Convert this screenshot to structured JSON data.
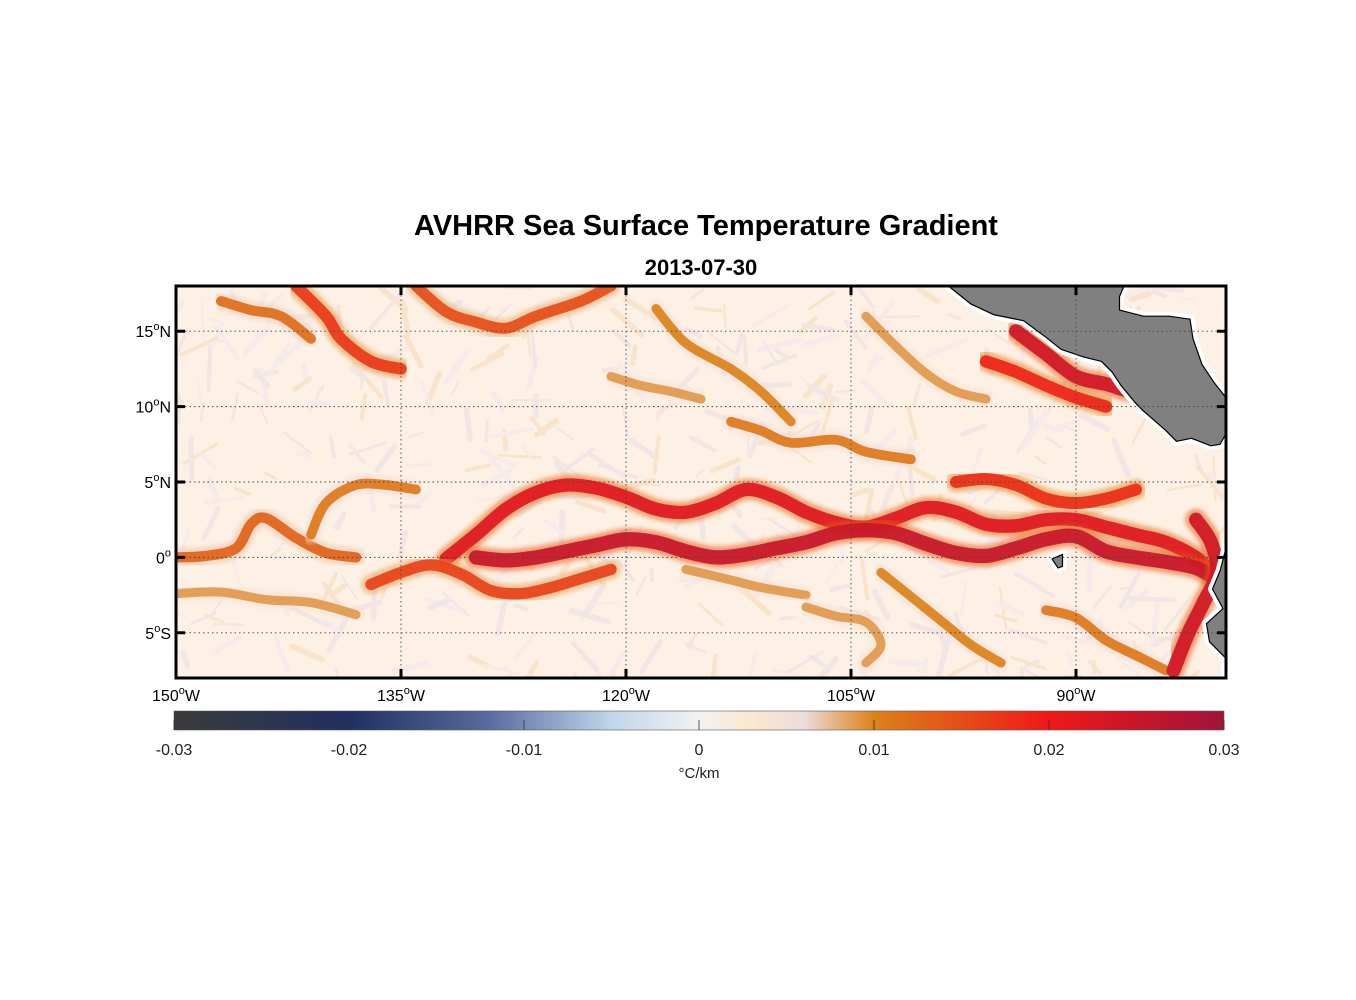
{
  "title": "AVHRR Sea Surface Temperature Gradient",
  "subtitle": "2013-07-30",
  "map": {
    "lon_range": [
      -150,
      -80
    ],
    "lat_range": [
      -8,
      18
    ],
    "lon_ticks": [
      {
        "value": -150,
        "deg": "150",
        "hemi": "W"
      },
      {
        "value": -135,
        "deg": "135",
        "hemi": "W"
      },
      {
        "value": -120,
        "deg": "120",
        "hemi": "W"
      },
      {
        "value": -105,
        "deg": "105",
        "hemi": "W"
      },
      {
        "value": -90,
        "deg": "90",
        "hemi": "W"
      }
    ],
    "lat_ticks": [
      {
        "value": 15,
        "deg": "15",
        "hemi": "N"
      },
      {
        "value": 10,
        "deg": "10",
        "hemi": "N"
      },
      {
        "value": 5,
        "deg": "5",
        "hemi": "N"
      },
      {
        "value": 0,
        "deg": "0",
        "hemi": ""
      },
      {
        "value": -5,
        "deg": "5",
        "hemi": "S"
      }
    ],
    "grid": true,
    "land_color": "#808080",
    "fronts": [
      {
        "name": "equatorial-front-main",
        "level": 0.022,
        "points": [
          [
            -132,
            -0.1
          ],
          [
            -130,
            1.5
          ],
          [
            -128,
            3.2
          ],
          [
            -126,
            4.3
          ],
          [
            -124,
            4.8
          ],
          [
            -122,
            4.6
          ],
          [
            -120,
            4.0
          ],
          [
            -118,
            3.2
          ],
          [
            -116,
            3.0
          ],
          [
            -114,
            3.6
          ],
          [
            -112,
            4.5
          ],
          [
            -110,
            4.0
          ],
          [
            -108,
            3.0
          ],
          [
            -106,
            2.3
          ],
          [
            -104,
            2.0
          ],
          [
            -102,
            2.6
          ],
          [
            -100,
            3.3
          ],
          [
            -98,
            3.0
          ],
          [
            -96,
            2.2
          ],
          [
            -94,
            2.1
          ],
          [
            -92,
            2.5
          ],
          [
            -90,
            2.5
          ],
          [
            -88,
            2.0
          ],
          [
            -86,
            1.5
          ],
          [
            -84,
            1.0
          ],
          [
            -82,
            0.0
          ],
          [
            -81,
            -1.0
          ]
        ]
      },
      {
        "name": "equatorial-front-south",
        "level": 0.025,
        "points": [
          [
            -130,
            0.0
          ],
          [
            -128,
            -0.2
          ],
          [
            -126,
            0.0
          ],
          [
            -124,
            0.4
          ],
          [
            -122,
            0.8
          ],
          [
            -120,
            1.2
          ],
          [
            -118,
            1.0
          ],
          [
            -116,
            0.4
          ],
          [
            -114,
            0.0
          ],
          [
            -112,
            0.2
          ],
          [
            -110,
            0.6
          ],
          [
            -108,
            1.0
          ],
          [
            -106,
            1.6
          ],
          [
            -104,
            1.8
          ],
          [
            -102,
            1.6
          ],
          [
            -100,
            0.9
          ],
          [
            -98,
            0.3
          ],
          [
            -96,
            0.1
          ],
          [
            -94,
            0.6
          ],
          [
            -92,
            1.2
          ],
          [
            -90,
            1.4
          ],
          [
            -88,
            0.4
          ],
          [
            -86,
            0.0
          ],
          [
            -84,
            -0.3
          ],
          [
            -82,
            -0.7
          ],
          [
            -80.6,
            -1.5
          ]
        ]
      },
      {
        "name": "south-arc-front",
        "level": 0.016,
        "points": [
          [
            -137,
            -1.8
          ],
          [
            -135,
            -1.0
          ],
          [
            -133,
            -0.5
          ],
          [
            -131,
            -1.1
          ],
          [
            -129,
            -2.2
          ],
          [
            -127,
            -2.4
          ],
          [
            -125,
            -2.0
          ],
          [
            -123,
            -1.4
          ],
          [
            -121,
            -0.8
          ]
        ]
      },
      {
        "name": "west-equatorial-front",
        "level": 0.013,
        "points": [
          [
            -150,
            0.0
          ],
          [
            -148,
            0.1
          ],
          [
            -146,
            0.6
          ],
          [
            -145,
            2.2
          ],
          [
            -144,
            2.6
          ],
          [
            -142,
            1.3
          ],
          [
            -140,
            0.3
          ],
          [
            -138,
            0.0
          ]
        ]
      },
      {
        "name": "north-5n-front",
        "level": 0.011,
        "points": [
          [
            -141,
            1.5
          ],
          [
            -140,
            3.6
          ],
          [
            -138,
            4.8
          ],
          [
            -136,
            4.8
          ],
          [
            -134,
            4.5
          ]
        ]
      },
      {
        "name": "southwest-front",
        "level": 0.009,
        "points": [
          [
            -150,
            -2.4
          ],
          [
            -147,
            -2.3
          ],
          [
            -144,
            -2.8
          ],
          [
            -141,
            -3.0
          ],
          [
            -138,
            -3.8
          ]
        ]
      },
      {
        "name": "central-south-front",
        "level": 0.009,
        "points": [
          [
            -116,
            -0.8
          ],
          [
            -113,
            -1.5
          ],
          [
            -111,
            -2.0
          ],
          [
            -108,
            -2.5
          ]
        ]
      },
      {
        "name": "southeast-front-a",
        "level": 0.01,
        "points": [
          [
            -103,
            -1.0
          ],
          [
            -101,
            -2.6
          ],
          [
            -99,
            -4.2
          ],
          [
            -97,
            -5.8
          ],
          [
            -95,
            -7.0
          ]
        ]
      },
      {
        "name": "southeast-front-b",
        "level": 0.011,
        "points": [
          [
            -92,
            -3.5
          ],
          [
            -90,
            -4.0
          ],
          [
            -88,
            -5.5
          ],
          [
            -86,
            -6.5
          ],
          [
            -84,
            -7.5
          ]
        ]
      },
      {
        "name": "south-eddy-front",
        "level": 0.009,
        "points": [
          [
            -108,
            -3.3
          ],
          [
            -106,
            -3.9
          ],
          [
            -104,
            -4.3
          ],
          [
            -103,
            -5.8
          ],
          [
            -104,
            -7.0
          ]
        ]
      },
      {
        "name": "north-front-west",
        "level": 0.017,
        "points": [
          [
            -142,
            18.0
          ],
          [
            -140,
            16.0
          ],
          [
            -139,
            14.5
          ],
          [
            -137,
            13.0
          ],
          [
            -135,
            12.5
          ]
        ]
      },
      {
        "name": "north-front-center",
        "level": 0.015,
        "points": [
          [
            -134,
            18.0
          ],
          [
            -132,
            16.3
          ],
          [
            -130,
            15.6
          ],
          [
            -128,
            15.2
          ],
          [
            -126,
            16.0
          ],
          [
            -123,
            17.0
          ],
          [
            -121,
            18.0
          ]
        ]
      },
      {
        "name": "north-front-west-2",
        "level": 0.012,
        "points": [
          [
            -147,
            17.0
          ],
          [
            -145,
            16.4
          ],
          [
            -143,
            16.0
          ],
          [
            -141,
            14.5
          ]
        ]
      },
      {
        "name": "north-front-mid",
        "level": 0.01,
        "points": [
          [
            -118,
            16.5
          ],
          [
            -116,
            14.2
          ],
          [
            -113,
            12.5
          ],
          [
            -111,
            11.0
          ],
          [
            -109,
            9.0
          ]
        ]
      },
      {
        "name": "north-front-mid-2",
        "level": 0.009,
        "points": [
          [
            -121,
            12.0
          ],
          [
            -119,
            11.4
          ],
          [
            -117,
            11.0
          ],
          [
            -115,
            10.5
          ]
        ]
      },
      {
        "name": "north-front-east",
        "level": 0.009,
        "points": [
          [
            -104,
            16.0
          ],
          [
            -102,
            14.0
          ],
          [
            -100,
            12.2
          ],
          [
            -98,
            11.0
          ],
          [
            -96,
            10.5
          ]
        ]
      },
      {
        "name": "coastal-front",
        "level": 0.024,
        "points": [
          [
            -94,
            15.0
          ],
          [
            -92,
            13.5
          ],
          [
            -90,
            12.0
          ],
          [
            -88,
            11.5
          ],
          [
            -86,
            11.0
          ],
          [
            -84,
            11.5
          ]
        ]
      },
      {
        "name": "coastal-front-inner",
        "level": 0.019,
        "points": [
          [
            -96,
            13.0
          ],
          [
            -94,
            12.3
          ],
          [
            -92,
            11.4
          ],
          [
            -90,
            10.6
          ],
          [
            -88,
            10.0
          ]
        ]
      },
      {
        "name": "north-8n-front",
        "level": 0.011,
        "points": [
          [
            -113,
            9.0
          ],
          [
            -111,
            8.4
          ],
          [
            -109,
            7.6
          ],
          [
            -106,
            7.8
          ],
          [
            -104,
            7.0
          ],
          [
            -101,
            6.5
          ]
        ]
      },
      {
        "name": "east-2n-front",
        "level": 0.018,
        "points": [
          [
            -98,
            5.0
          ],
          [
            -96,
            5.2
          ],
          [
            -94,
            4.8
          ],
          [
            -92,
            3.9
          ],
          [
            -90,
            3.6
          ],
          [
            -88,
            3.9
          ],
          [
            -86,
            4.5
          ]
        ]
      },
      {
        "name": "east-coast-front",
        "level": 0.024,
        "points": [
          [
            -82,
            2.5
          ],
          [
            -81,
            1.0
          ],
          [
            -80.6,
            -1.0
          ],
          [
            -81.5,
            -3.0
          ],
          [
            -82.5,
            -5.0
          ],
          [
            -83.5,
            -7.5
          ]
        ]
      }
    ],
    "islands": [
      {
        "name": "galapagos",
        "points": [
          [
            -91.6,
            -0.1
          ],
          [
            -90.9,
            0.2
          ],
          [
            -90.9,
            -0.6
          ],
          [
            -91.2,
            -0.7
          ],
          [
            -91.6,
            -0.1
          ]
        ]
      }
    ],
    "land_polygons": [
      {
        "name": "central-america",
        "points": [
          [
            -98.5,
            18.0
          ],
          [
            -97.0,
            16.8
          ],
          [
            -95.5,
            16.1
          ],
          [
            -93.5,
            15.7
          ],
          [
            -92.0,
            14.6
          ],
          [
            -91.0,
            13.8
          ],
          [
            -89.5,
            13.3
          ],
          [
            -88.3,
            13.0
          ],
          [
            -87.6,
            12.3
          ],
          [
            -87.0,
            11.4
          ],
          [
            -86.0,
            10.2
          ],
          [
            -85.5,
            9.7
          ],
          [
            -84.8,
            9.1
          ],
          [
            -84.0,
            8.4
          ],
          [
            -83.3,
            7.7
          ],
          [
            -82.3,
            7.9
          ],
          [
            -81.0,
            7.4
          ],
          [
            -80.4,
            7.5
          ],
          [
            -80.0,
            8.2
          ],
          [
            -80.0,
            10.6
          ],
          [
            -80.8,
            11.6
          ],
          [
            -81.6,
            12.8
          ],
          [
            -82.2,
            14.5
          ],
          [
            -82.4,
            15.8
          ],
          [
            -83.8,
            16.0
          ],
          [
            -85.5,
            16.0
          ],
          [
            -87.1,
            16.4
          ],
          [
            -87.1,
            17.3
          ],
          [
            -86.8,
            18.0
          ]
        ]
      },
      {
        "name": "south-america",
        "points": [
          [
            -80.0,
            0.6
          ],
          [
            -80.4,
            -0.9
          ],
          [
            -80.9,
            -2.1
          ],
          [
            -80.2,
            -3.4
          ],
          [
            -81.3,
            -4.4
          ],
          [
            -81.1,
            -5.6
          ],
          [
            -79.9,
            -6.8
          ],
          [
            -79.6,
            -7.5
          ],
          [
            -79.4,
            -8.0
          ],
          [
            -80.0,
            -8.0
          ],
          [
            -80.0,
            0.6
          ]
        ]
      }
    ]
  },
  "colorbar": {
    "min": -0.03,
    "max": 0.03,
    "ticks": [
      "-0.03",
      "-0.02",
      "-0.01",
      "0",
      "0.01",
      "0.02",
      "0.03"
    ],
    "label": "°C/km",
    "stops": [
      {
        "value": -0.03,
        "color": "#3b3b3b"
      },
      {
        "value": -0.02,
        "color": "#1f3060"
      },
      {
        "value": -0.012,
        "color": "#5a6aa0"
      },
      {
        "value": -0.005,
        "color": "#c0d6ea"
      },
      {
        "value": 0.0,
        "color": "#f2f2f2"
      },
      {
        "value": 0.003,
        "color": "#fce8cc"
      },
      {
        "value": 0.006,
        "color": "#ecdcdc"
      },
      {
        "value": 0.01,
        "color": "#dc8218"
      },
      {
        "value": 0.02,
        "color": "#f01818"
      },
      {
        "value": 0.03,
        "color": "#a0143a"
      }
    ]
  }
}
